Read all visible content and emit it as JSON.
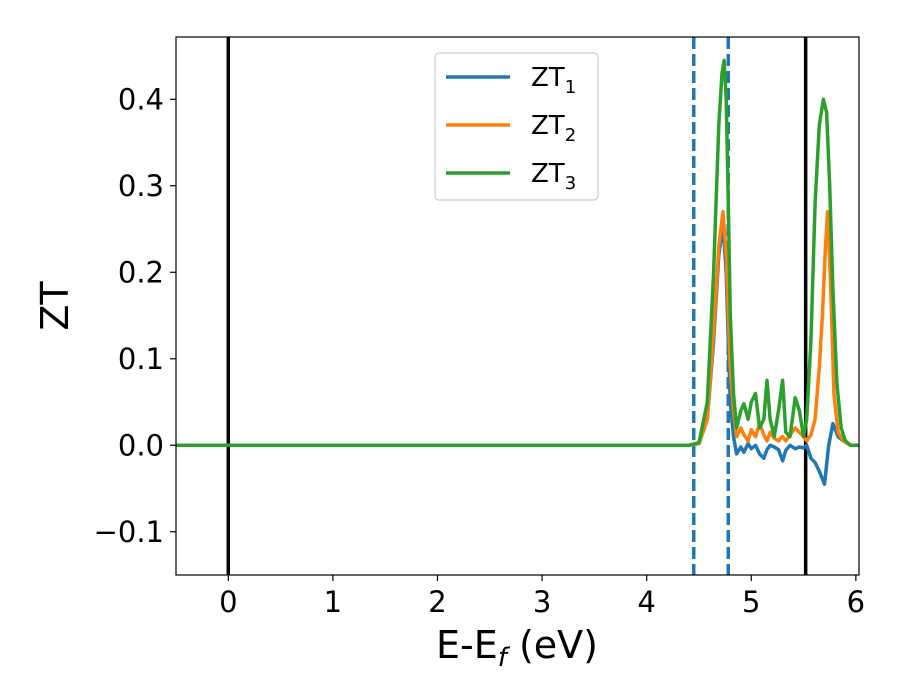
{
  "chart_data": {
    "type": "line",
    "xlabel": {
      "main": "E-E",
      "sub": "f",
      "suffix": " (eV)"
    },
    "ylabel": "ZT",
    "xlim": [
      -0.5,
      6.03
    ],
    "ylim": [
      -0.15,
      0.472
    ],
    "xticks": [
      0,
      1,
      2,
      3,
      4,
      5,
      6
    ],
    "xtick_labels": [
      "0",
      "1",
      "2",
      "3",
      "4",
      "5",
      "6"
    ],
    "yticks": [
      -0.1,
      0.0,
      0.1,
      0.2,
      0.3,
      0.4
    ],
    "ytick_labels": [
      "−0.1",
      "0.0",
      "0.1",
      "0.2",
      "0.3",
      "0.4"
    ],
    "grid": false,
    "legend": {
      "position": "top-center",
      "entries": [
        {
          "main": "ZT",
          "sub": "1",
          "color": "#1f77b4"
        },
        {
          "main": "ZT",
          "sub": "2",
          "color": "#ff7f0e"
        },
        {
          "main": "ZT",
          "sub": "3",
          "color": "#2ca02c"
        }
      ]
    },
    "vlines": [
      {
        "x": 0.0,
        "color": "#000000",
        "style": "solid"
      },
      {
        "x": 4.45,
        "color": "#1f77b4",
        "style": "dashed"
      },
      {
        "x": 4.78,
        "color": "#1f77b4",
        "style": "dashed"
      },
      {
        "x": 5.52,
        "color": "#000000",
        "style": "solid"
      }
    ],
    "series": [
      {
        "name": "ZT1",
        "color": "#1f77b4",
        "x": [
          -0.5,
          4.4,
          4.5,
          4.58,
          4.64,
          4.69,
          4.73,
          4.76,
          4.78,
          4.8,
          4.83,
          4.86,
          4.9,
          4.93,
          4.97,
          5.0,
          5.04,
          5.08,
          5.12,
          5.15,
          5.18,
          5.22,
          5.26,
          5.3,
          5.33,
          5.37,
          5.42,
          5.46,
          5.5,
          5.53,
          5.57,
          5.61,
          5.65,
          5.7,
          5.74,
          5.78,
          5.83,
          5.88,
          5.95,
          6.03
        ],
        "y": [
          0.0,
          0.0,
          0.002,
          0.03,
          0.12,
          0.22,
          0.255,
          0.2,
          0.12,
          0.05,
          0.01,
          -0.01,
          -0.002,
          -0.008,
          0.002,
          -0.004,
          0.0,
          -0.01,
          -0.015,
          -0.005,
          0.0,
          -0.002,
          -0.005,
          -0.018,
          -0.006,
          0.0,
          -0.004,
          -0.002,
          -0.003,
          0.0,
          -0.015,
          -0.02,
          -0.03,
          -0.045,
          0.0,
          0.025,
          0.01,
          0.005,
          0.0,
          0.0
        ]
      },
      {
        "name": "ZT2",
        "color": "#ff7f0e",
        "x": [
          -0.5,
          4.4,
          4.5,
          4.58,
          4.64,
          4.69,
          4.73,
          4.76,
          4.78,
          4.8,
          4.83,
          4.86,
          4.9,
          4.93,
          4.97,
          5.0,
          5.04,
          5.08,
          5.12,
          5.15,
          5.18,
          5.22,
          5.26,
          5.3,
          5.33,
          5.37,
          5.42,
          5.46,
          5.5,
          5.53,
          5.57,
          5.61,
          5.65,
          5.68,
          5.71,
          5.73,
          5.76,
          5.79,
          5.83,
          5.88,
          5.95,
          6.03
        ],
        "y": [
          0.0,
          0.0,
          0.002,
          0.03,
          0.13,
          0.23,
          0.27,
          0.22,
          0.15,
          0.09,
          0.04,
          0.01,
          0.02,
          0.012,
          0.005,
          0.018,
          0.01,
          0.025,
          0.012,
          0.005,
          0.015,
          0.008,
          0.005,
          0.01,
          0.005,
          0.012,
          0.02,
          0.015,
          0.01,
          0.005,
          0.012,
          0.03,
          0.09,
          0.15,
          0.23,
          0.27,
          0.18,
          0.06,
          0.015,
          0.005,
          0.0,
          0.0
        ]
      },
      {
        "name": "ZT3",
        "color": "#2ca02c",
        "x": [
          -0.5,
          4.4,
          4.5,
          4.58,
          4.64,
          4.69,
          4.72,
          4.74,
          4.76,
          4.78,
          4.8,
          4.83,
          4.86,
          4.9,
          4.93,
          4.97,
          5.0,
          5.04,
          5.08,
          5.12,
          5.15,
          5.18,
          5.22,
          5.26,
          5.3,
          5.33,
          5.37,
          5.42,
          5.46,
          5.5,
          5.53,
          5.57,
          5.61,
          5.65,
          5.69,
          5.72,
          5.75,
          5.78,
          5.82,
          5.86,
          5.9,
          5.95,
          6.03
        ],
        "y": [
          0.0,
          0.0,
          0.003,
          0.05,
          0.2,
          0.37,
          0.43,
          0.445,
          0.4,
          0.28,
          0.15,
          0.06,
          0.02,
          0.04,
          0.048,
          0.03,
          0.05,
          0.06,
          0.02,
          0.03,
          0.075,
          0.03,
          0.01,
          0.04,
          0.075,
          0.015,
          0.01,
          0.055,
          0.04,
          0.01,
          0.03,
          0.12,
          0.28,
          0.37,
          0.4,
          0.385,
          0.3,
          0.18,
          0.07,
          0.02,
          0.005,
          0.0,
          0.0
        ]
      }
    ]
  }
}
